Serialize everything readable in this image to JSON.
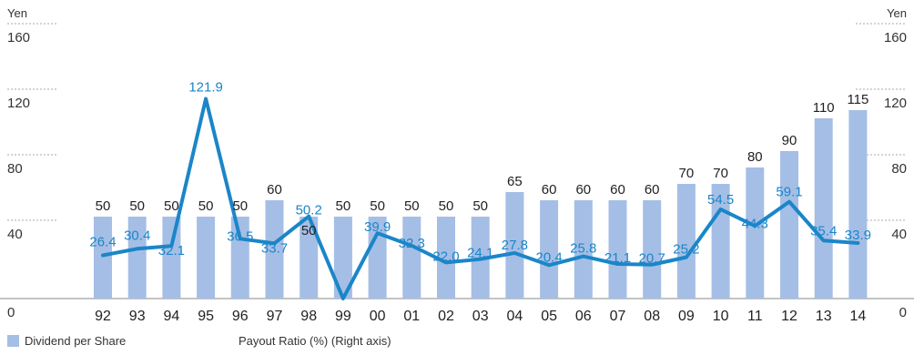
{
  "chart_data": {
    "type": "bar",
    "categories": [
      "92",
      "93",
      "94",
      "95",
      "96",
      "97",
      "98",
      "99",
      "00",
      "01",
      "02",
      "03",
      "04",
      "05",
      "06",
      "07",
      "08",
      "09",
      "10",
      "11",
      "12",
      "13",
      "14"
    ],
    "series": [
      {
        "name": "Dividend per Share",
        "type": "bar",
        "axis": "left",
        "values": [
          50,
          50,
          50,
          50,
          50,
          60,
          50,
          50,
          50,
          50,
          50,
          50,
          65,
          60,
          60,
          60,
          60,
          70,
          70,
          80,
          90,
          110,
          115
        ],
        "labels": [
          "50",
          "50",
          "50",
          "50",
          "50",
          "60",
          "50",
          "50",
          "50",
          "50",
          "50",
          "50",
          "65",
          "60",
          "60",
          "60",
          "60",
          "70",
          "70",
          "80",
          "90",
          "110",
          "115"
        ]
      },
      {
        "name": "Payout Ratio (%) (Right axis)",
        "type": "line",
        "axis": "right",
        "values": [
          26.4,
          30.4,
          32.1,
          121.9,
          36.5,
          33.7,
          50.2,
          0,
          39.9,
          32.3,
          22.0,
          24.1,
          27.8,
          20.4,
          25.8,
          21.1,
          20.7,
          25.2,
          54.5,
          44.3,
          59.1,
          35.4,
          33.9
        ],
        "labels": [
          "26.4",
          "30.4",
          "32.1",
          "121.9",
          "36.5",
          "33.7",
          "50.2",
          "",
          "39.9",
          "32.3",
          "22.0",
          "24.1",
          "27.8",
          "20.4",
          "25.8",
          "21.1",
          "20.7",
          "25.2",
          "54.5",
          "44.3",
          "59.1",
          "35.4",
          "33.9"
        ]
      }
    ],
    "y_left": {
      "unit": "Yen",
      "ticks": [
        "0",
        "40",
        "80",
        "120",
        "160"
      ],
      "ylim": [
        0,
        160
      ]
    },
    "y_right": {
      "unit": "Yen",
      "ticks": [
        "0",
        "40",
        "80",
        "120",
        "160"
      ],
      "ylim": [
        0,
        160
      ]
    },
    "colors": {
      "bar": "#a5bee6",
      "line": "#1a86c8",
      "line_label": "#1a86c8",
      "tick_dash": "#aaaaaa"
    },
    "legend": [
      {
        "label": "Dividend per Share",
        "kind": "bar"
      },
      {
        "label": "Payout Ratio (%) (Right axis)",
        "kind": "line"
      }
    ]
  }
}
